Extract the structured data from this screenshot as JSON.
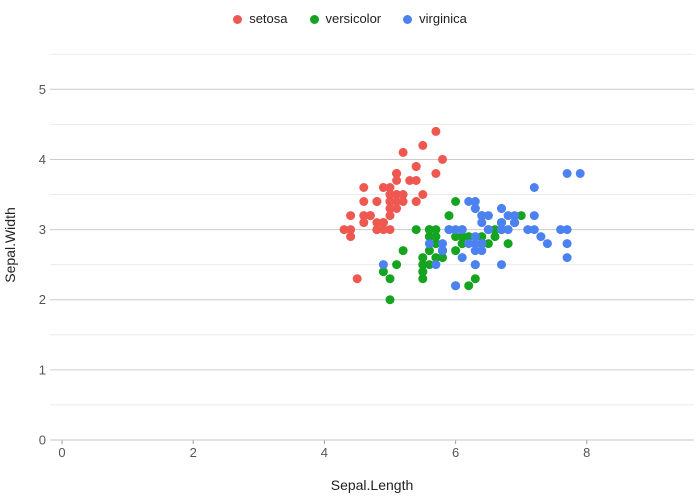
{
  "chart": {
    "background_color": "#ffffff",
    "grid_major_color": "#cccccc",
    "grid_minor_color": "#ebebeb",
    "axis_line_color": "#c4c4c4",
    "tick_mark_color": "#9e9e9e",
    "tick_label_color": "#565656",
    "axis_title_color": "#222222",
    "legend_text_color": "#212121"
  },
  "chart_data": {
    "type": "scatter",
    "title": "",
    "xlabel": "Sepal.Length",
    "ylabel": "Sepal.Width",
    "xlim": [
      0,
      9.63
    ],
    "ylim": [
      0,
      5.55
    ],
    "x_ticks": [
      0,
      2,
      4,
      6,
      8
    ],
    "y_ticks": [
      0,
      1,
      2,
      3,
      4,
      5
    ],
    "y_minor_ticks": [
      0.5,
      1.5,
      2.5,
      3.5,
      4.5,
      5.5
    ],
    "grid": "horizontal-only",
    "legend_position": "top-center",
    "marker_radius": 4.5,
    "series": [
      {
        "name": "setosa",
        "color": "#EE5851",
        "points": [
          [
            5.1,
            3.5
          ],
          [
            4.9,
            3.0
          ],
          [
            4.7,
            3.2
          ],
          [
            4.6,
            3.1
          ],
          [
            5.0,
            3.6
          ],
          [
            5.4,
            3.9
          ],
          [
            4.6,
            3.4
          ],
          [
            5.0,
            3.4
          ],
          [
            4.4,
            2.9
          ],
          [
            4.9,
            3.1
          ],
          [
            5.4,
            3.7
          ],
          [
            4.8,
            3.4
          ],
          [
            4.8,
            3.0
          ],
          [
            4.3,
            3.0
          ],
          [
            5.8,
            4.0
          ],
          [
            5.7,
            4.4
          ],
          [
            5.4,
            3.9
          ],
          [
            5.1,
            3.5
          ],
          [
            5.7,
            3.8
          ],
          [
            5.1,
            3.8
          ],
          [
            5.4,
            3.4
          ],
          [
            5.1,
            3.7
          ],
          [
            4.6,
            3.6
          ],
          [
            5.1,
            3.3
          ],
          [
            4.8,
            3.4
          ],
          [
            5.0,
            3.0
          ],
          [
            5.0,
            3.4
          ],
          [
            5.2,
            3.5
          ],
          [
            5.2,
            3.4
          ],
          [
            4.7,
            3.2
          ],
          [
            4.8,
            3.1
          ],
          [
            5.4,
            3.4
          ],
          [
            5.2,
            4.1
          ],
          [
            5.5,
            4.2
          ],
          [
            4.9,
            3.1
          ],
          [
            5.0,
            3.2
          ],
          [
            5.5,
            3.5
          ],
          [
            4.9,
            3.6
          ],
          [
            4.4,
            3.0
          ],
          [
            5.1,
            3.4
          ],
          [
            5.0,
            3.5
          ],
          [
            4.5,
            2.3
          ],
          [
            4.4,
            3.2
          ],
          [
            5.0,
            3.5
          ],
          [
            5.1,
            3.8
          ],
          [
            4.8,
            3.0
          ],
          [
            5.1,
            3.8
          ],
          [
            4.6,
            3.2
          ],
          [
            5.3,
            3.7
          ],
          [
            5.0,
            3.3
          ]
        ]
      },
      {
        "name": "versicolor",
        "color": "#14A41F",
        "points": [
          [
            7.0,
            3.2
          ],
          [
            6.4,
            3.2
          ],
          [
            6.9,
            3.1
          ],
          [
            5.5,
            2.3
          ],
          [
            6.5,
            2.8
          ],
          [
            5.7,
            2.8
          ],
          [
            6.3,
            3.3
          ],
          [
            4.9,
            2.4
          ],
          [
            6.6,
            2.9
          ],
          [
            5.2,
            2.7
          ],
          [
            5.0,
            2.0
          ],
          [
            5.9,
            3.0
          ],
          [
            6.0,
            2.2
          ],
          [
            6.1,
            2.9
          ],
          [
            5.6,
            2.9
          ],
          [
            6.7,
            3.1
          ],
          [
            5.6,
            3.0
          ],
          [
            5.8,
            2.7
          ],
          [
            6.2,
            2.2
          ],
          [
            5.6,
            2.5
          ],
          [
            5.9,
            3.2
          ],
          [
            6.1,
            2.8
          ],
          [
            6.3,
            2.5
          ],
          [
            6.1,
            2.8
          ],
          [
            6.4,
            2.9
          ],
          [
            6.6,
            3.0
          ],
          [
            6.8,
            2.8
          ],
          [
            6.7,
            3.0
          ],
          [
            6.0,
            2.9
          ],
          [
            5.7,
            2.6
          ],
          [
            5.5,
            2.4
          ],
          [
            5.5,
            2.4
          ],
          [
            5.8,
            2.7
          ],
          [
            6.0,
            2.7
          ],
          [
            5.4,
            3.0
          ],
          [
            6.0,
            3.4
          ],
          [
            6.7,
            3.1
          ],
          [
            6.3,
            2.3
          ],
          [
            5.6,
            3.0
          ],
          [
            5.5,
            2.5
          ],
          [
            5.5,
            2.6
          ],
          [
            6.1,
            3.0
          ],
          [
            5.8,
            2.6
          ],
          [
            5.0,
            2.3
          ],
          [
            5.6,
            2.7
          ],
          [
            5.7,
            3.0
          ],
          [
            5.7,
            2.9
          ],
          [
            6.2,
            2.9
          ],
          [
            5.1,
            2.5
          ],
          [
            5.7,
            2.8
          ]
        ]
      },
      {
        "name": "virginica",
        "color": "#4C81F1",
        "points": [
          [
            6.3,
            3.3
          ],
          [
            5.8,
            2.7
          ],
          [
            7.1,
            3.0
          ],
          [
            6.3,
            2.9
          ],
          [
            6.5,
            3.0
          ],
          [
            7.6,
            3.0
          ],
          [
            4.9,
            2.5
          ],
          [
            7.3,
            2.9
          ],
          [
            6.7,
            2.5
          ],
          [
            7.2,
            3.6
          ],
          [
            6.5,
            3.2
          ],
          [
            6.4,
            2.7
          ],
          [
            6.8,
            3.0
          ],
          [
            5.7,
            2.5
          ],
          [
            5.8,
            2.8
          ],
          [
            6.4,
            3.2
          ],
          [
            6.5,
            3.0
          ],
          [
            7.7,
            3.8
          ],
          [
            7.7,
            2.6
          ],
          [
            6.0,
            2.2
          ],
          [
            6.9,
            3.2
          ],
          [
            5.6,
            2.8
          ],
          [
            7.7,
            2.8
          ],
          [
            6.3,
            2.7
          ],
          [
            6.7,
            3.3
          ],
          [
            7.2,
            3.2
          ],
          [
            6.2,
            2.8
          ],
          [
            6.1,
            3.0
          ],
          [
            6.4,
            2.8
          ],
          [
            7.2,
            3.0
          ],
          [
            7.4,
            2.8
          ],
          [
            7.9,
            3.8
          ],
          [
            6.4,
            2.8
          ],
          [
            6.3,
            2.8
          ],
          [
            6.1,
            2.6
          ],
          [
            7.7,
            3.0
          ],
          [
            6.3,
            3.4
          ],
          [
            6.4,
            3.1
          ],
          [
            6.0,
            3.0
          ],
          [
            6.9,
            3.1
          ],
          [
            6.7,
            3.1
          ],
          [
            6.9,
            3.1
          ],
          [
            5.8,
            2.7
          ],
          [
            6.8,
            3.2
          ],
          [
            6.7,
            3.3
          ],
          [
            6.7,
            3.0
          ],
          [
            6.3,
            2.5
          ],
          [
            6.5,
            3.0
          ],
          [
            6.2,
            3.4
          ],
          [
            5.9,
            3.0
          ]
        ]
      }
    ]
  }
}
